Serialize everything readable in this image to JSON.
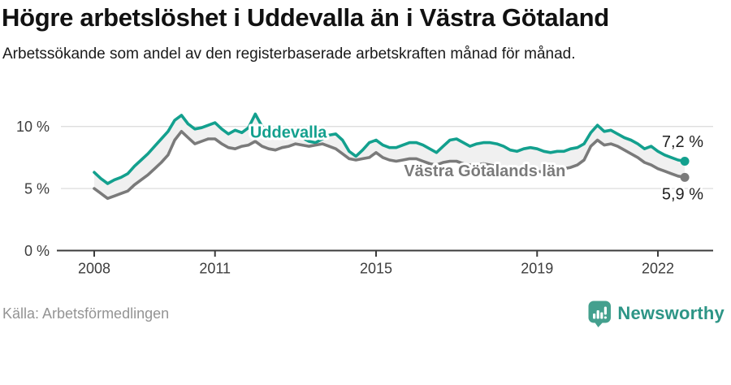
{
  "header": {
    "title": "Högre arbetslöshet i Uddevalla än i Västra Götaland",
    "subtitle": "Arbetssökande som andel av den registerbaserade arbetskraften månad för månad."
  },
  "chart_data": {
    "type": "line",
    "title": "Högre arbetslöshet i Uddevalla än i Västra Götaland",
    "subtitle": "Arbetssökande som andel av den registerbaserade arbetskraften månad för månad.",
    "source": "Källa: Arbetsförmedlingen",
    "x_unit": "decimal year (monthly data sampled every 2 months)",
    "xlim": [
      2007.17,
      2023.37
    ],
    "ylim": [
      0,
      12.3
    ],
    "grid": "horizontal",
    "legend": "inline labels on lines",
    "yticks": [
      {
        "v": 0,
        "label": "0 %"
      },
      {
        "v": 5,
        "label": "5 %"
      },
      {
        "v": 10,
        "label": "10 %"
      }
    ],
    "xticks": [
      {
        "v": 2008,
        "label": "2008"
      },
      {
        "v": 2011,
        "label": "2011"
      },
      {
        "v": 2015,
        "label": "2015"
      },
      {
        "v": 2019,
        "label": "2019"
      },
      {
        "v": 2022,
        "label": "2022"
      }
    ],
    "x": [
      2008.0,
      2008.167,
      2008.333,
      2008.5,
      2008.667,
      2008.833,
      2009.0,
      2009.167,
      2009.333,
      2009.5,
      2009.667,
      2009.833,
      2010.0,
      2010.167,
      2010.333,
      2010.5,
      2010.667,
      2010.833,
      2011.0,
      2011.167,
      2011.333,
      2011.5,
      2011.667,
      2011.833,
      2012.0,
      2012.167,
      2012.333,
      2012.5,
      2012.667,
      2012.833,
      2013.0,
      2013.167,
      2013.333,
      2013.5,
      2013.667,
      2013.833,
      2014.0,
      2014.167,
      2014.333,
      2014.5,
      2014.667,
      2014.833,
      2015.0,
      2015.167,
      2015.333,
      2015.5,
      2015.667,
      2015.833,
      2016.0,
      2016.167,
      2016.333,
      2016.5,
      2016.667,
      2016.833,
      2017.0,
      2017.167,
      2017.333,
      2017.5,
      2017.667,
      2017.833,
      2018.0,
      2018.167,
      2018.333,
      2018.5,
      2018.667,
      2018.833,
      2019.0,
      2019.167,
      2019.333,
      2019.5,
      2019.667,
      2019.833,
      2020.0,
      2020.167,
      2020.333,
      2020.5,
      2020.667,
      2020.833,
      2021.0,
      2021.167,
      2021.333,
      2021.5,
      2021.667,
      2021.833,
      2022.0,
      2022.167,
      2022.333,
      2022.5,
      2022.667
    ],
    "series": [
      {
        "name": "Uddevalla",
        "color": "#13a08e",
        "end_label": "7,2 %",
        "end_value": 7.2,
        "label_x": 2011.87,
        "label_v": 9.1,
        "label_anchor": "start",
        "values": [
          6.3,
          5.8,
          5.4,
          5.7,
          5.9,
          6.2,
          6.8,
          7.3,
          7.8,
          8.4,
          9.0,
          9.6,
          10.5,
          10.9,
          10.2,
          9.8,
          9.9,
          10.1,
          10.3,
          9.8,
          9.4,
          9.7,
          9.5,
          9.9,
          11.0,
          10.0,
          9.4,
          9.2,
          9.4,
          9.3,
          9.5,
          9.1,
          8.8,
          8.7,
          9.0,
          9.3,
          9.4,
          8.9,
          8.0,
          7.6,
          8.1,
          8.7,
          8.9,
          8.5,
          8.3,
          8.3,
          8.5,
          8.7,
          8.7,
          8.5,
          8.2,
          7.9,
          8.4,
          8.9,
          9.0,
          8.7,
          8.4,
          8.6,
          8.7,
          8.7,
          8.6,
          8.4,
          8.1,
          8.0,
          8.2,
          8.3,
          8.2,
          8.0,
          7.9,
          8.0,
          8.0,
          8.2,
          8.3,
          8.6,
          9.5,
          10.1,
          9.6,
          9.7,
          9.4,
          9.1,
          8.9,
          8.6,
          8.2,
          8.4,
          8.0,
          7.7,
          7.5,
          7.3,
          7.2
        ]
      },
      {
        "name": "Västra Götalands län",
        "color": "#7a7a7a",
        "end_label": "5,9 %",
        "end_value": 5.9,
        "label_x": 2017.7,
        "label_v": 6.0,
        "label_anchor": "middle",
        "values": [
          5.0,
          4.6,
          4.2,
          4.4,
          4.6,
          4.8,
          5.3,
          5.7,
          6.1,
          6.6,
          7.1,
          7.7,
          8.9,
          9.6,
          9.1,
          8.6,
          8.8,
          9.0,
          9.0,
          8.6,
          8.3,
          8.2,
          8.4,
          8.5,
          8.8,
          8.4,
          8.2,
          8.1,
          8.3,
          8.4,
          8.6,
          8.5,
          8.4,
          8.5,
          8.6,
          8.4,
          8.2,
          7.8,
          7.4,
          7.3,
          7.4,
          7.5,
          7.9,
          7.5,
          7.3,
          7.2,
          7.3,
          7.4,
          7.4,
          7.2,
          7.0,
          6.9,
          7.1,
          7.2,
          7.2,
          7.0,
          6.9,
          6.9,
          7.0,
          6.9,
          6.8,
          6.6,
          6.4,
          6.4,
          6.5,
          6.5,
          6.4,
          6.3,
          6.4,
          6.5,
          6.6,
          6.7,
          6.9,
          7.3,
          8.4,
          8.9,
          8.5,
          8.6,
          8.4,
          8.1,
          7.8,
          7.5,
          7.1,
          6.9,
          6.6,
          6.4,
          6.2,
          6.0,
          5.9
        ]
      }
    ]
  },
  "colors": {
    "uddevalla_line": "#13a08e",
    "vastra_gotaland_line": "#7a7a7a",
    "band_fill": "#f0f0f0",
    "grid": "#dedede",
    "axis": "#3b3b3b",
    "tick_text": "#3d3d3d",
    "end_label_text": "#1f1f1f",
    "brand_bubble": "#44a08e",
    "brand_text": "#2d9586"
  },
  "footer": {
    "source": "Källa: Arbetsförmedlingen",
    "brand": "Newsworthy"
  }
}
